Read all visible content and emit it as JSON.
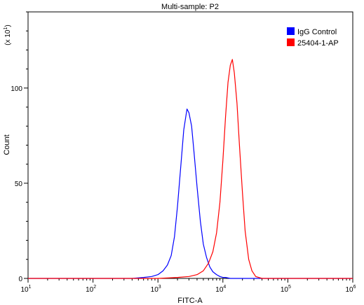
{
  "chart_data": {
    "type": "line",
    "title": "Multi-sample: P2",
    "xlabel": "FITC-A",
    "ylabel": "Count",
    "y_multiplier": "(x 10",
    "y_multiplier_exp": "1",
    "y_multiplier_close": ")",
    "x_scale": "log",
    "xlim": [
      10,
      1000000
    ],
    "ylim": [
      0,
      140
    ],
    "x_ticks": [
      {
        "value": 10,
        "base": "10",
        "exp": "1"
      },
      {
        "value": 100,
        "base": "10",
        "exp": "2"
      },
      {
        "value": 1000,
        "base": "10",
        "exp": "3"
      },
      {
        "value": 10000,
        "base": "10",
        "exp": "4"
      },
      {
        "value": 100000,
        "base": "10",
        "exp": "5"
      },
      {
        "value": 1000000,
        "base": "10",
        "exp": "6"
      }
    ],
    "y_ticks": [
      {
        "value": 0,
        "label": "0"
      },
      {
        "value": 50,
        "label": "50"
      },
      {
        "value": 100,
        "label": "100"
      }
    ],
    "grid": false,
    "legend_position": "top-right",
    "series": [
      {
        "name": "IgG Control",
        "color": "#0000ff",
        "x": [
          10,
          400,
          600,
          800,
          1000,
          1200,
          1400,
          1600,
          1800,
          2000,
          2200,
          2500,
          2800,
          3000,
          3300,
          3600,
          4000,
          4500,
          5000,
          5600,
          6300,
          7000,
          8000,
          9000,
          10000,
          11000,
          13000,
          20000,
          1000000
        ],
        "y": [
          0,
          0,
          0.5,
          1,
          2,
          4,
          7,
          12,
          22,
          38,
          55,
          78,
          89,
          87,
          80,
          66,
          48,
          30,
          18,
          11,
          6,
          3.5,
          2,
          1,
          0.5,
          0.5,
          0,
          0,
          0
        ]
      },
      {
        "name": "25404-1-AP",
        "color": "#ff0000",
        "x": [
          10,
          1000,
          2000,
          3000,
          4000,
          5000,
          6000,
          7000,
          8000,
          9000,
          10000,
          11000,
          12000,
          13000,
          14000,
          15000,
          16500,
          18000,
          20000,
          22000,
          25000,
          28000,
          32000,
          40000,
          1000000
        ],
        "y": [
          0,
          0,
          0.5,
          1,
          2,
          4,
          8,
          14,
          24,
          40,
          62,
          85,
          103,
          112,
          115,
          108,
          92,
          70,
          45,
          25,
          10,
          4,
          1,
          0,
          0
        ]
      }
    ]
  }
}
